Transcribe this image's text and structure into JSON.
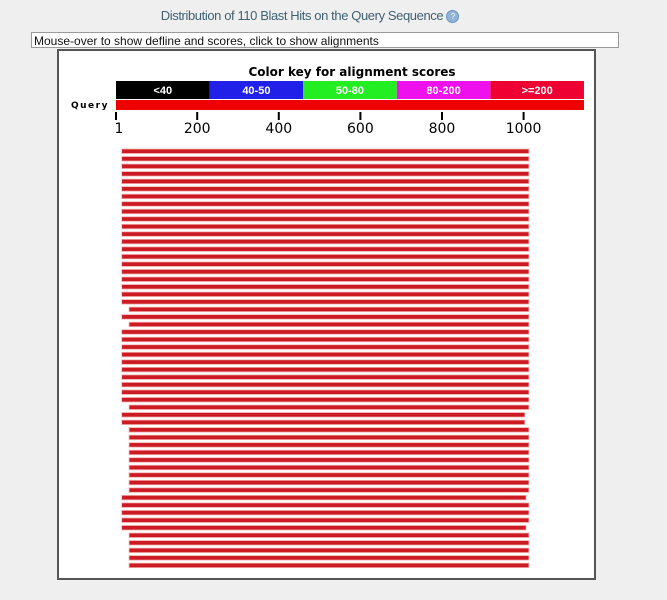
{
  "header": {
    "title": "Distribution of 110 Blast Hits on the Query Sequence",
    "help_icon": "question-circle-icon"
  },
  "info_text": "Mouse-over to show defline and scores, click to show alignments",
  "chart_data": {
    "type": "alignment-overview",
    "title": "Color key for alignment scores",
    "color_key": [
      {
        "label": "<40",
        "color": "#000000",
        "text": "#ffffff"
      },
      {
        "label": "40-50",
        "color": "#2020e8",
        "text": "#ffffff"
      },
      {
        "label": "50-80",
        "color": "#22ee22",
        "text": "#ffffff"
      },
      {
        "label": "80-200",
        "color": "#ee11ee",
        "text": "#ffffff"
      },
      {
        "label": ">=200",
        "color": "#ee0033",
        "text": "#ffffff"
      }
    ],
    "query_label": "Query",
    "query_length": 1148,
    "query_color": "#ee0000",
    "hit_color": "#cc1a22",
    "xticks": [
      1,
      200,
      400,
      600,
      800,
      1000
    ],
    "xtick_labels": [
      "1",
      "200",
      "400",
      "600",
      "800",
      "1000"
    ],
    "hits": [
      [
        15,
        1013
      ],
      [
        15,
        1013
      ],
      [
        15,
        1013
      ],
      [
        15,
        1013
      ],
      [
        15,
        1013
      ],
      [
        15,
        1013
      ],
      [
        15,
        1013
      ],
      [
        15,
        1013
      ],
      [
        15,
        1013
      ],
      [
        15,
        1013
      ],
      [
        15,
        1013
      ],
      [
        15,
        1013
      ],
      [
        15,
        1013
      ],
      [
        15,
        1013
      ],
      [
        15,
        1013
      ],
      [
        15,
        1013
      ],
      [
        15,
        1013
      ],
      [
        15,
        1013
      ],
      [
        15,
        1013
      ],
      [
        15,
        1013
      ],
      [
        15,
        1013
      ],
      [
        33,
        1013
      ],
      [
        15,
        1013
      ],
      [
        33,
        1013
      ],
      [
        15,
        1013
      ],
      [
        15,
        1013
      ],
      [
        15,
        1013
      ],
      [
        15,
        1013
      ],
      [
        15,
        1013
      ],
      [
        15,
        1013
      ],
      [
        15,
        1013
      ],
      [
        15,
        1013
      ],
      [
        15,
        1013
      ],
      [
        15,
        1013
      ],
      [
        33,
        1013
      ],
      [
        15,
        1003
      ],
      [
        15,
        1003
      ],
      [
        33,
        1013
      ],
      [
        33,
        1013
      ],
      [
        33,
        1013
      ],
      [
        33,
        1013
      ],
      [
        33,
        1013
      ],
      [
        33,
        1013
      ],
      [
        33,
        1013
      ],
      [
        33,
        1013
      ],
      [
        33,
        1013
      ],
      [
        15,
        1006
      ],
      [
        15,
        1013
      ],
      [
        15,
        1013
      ],
      [
        15,
        1013
      ],
      [
        15,
        1006
      ],
      [
        33,
        1013
      ],
      [
        33,
        1013
      ],
      [
        33,
        1013
      ],
      [
        33,
        1013
      ],
      [
        33,
        1013
      ]
    ]
  }
}
